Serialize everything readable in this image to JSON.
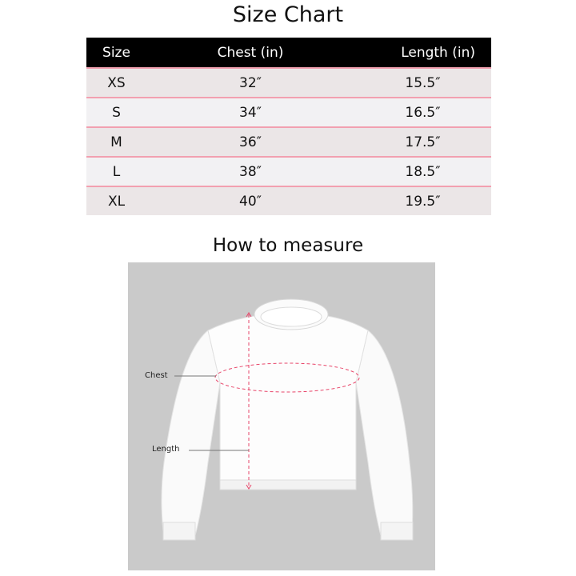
{
  "title": "Size Chart",
  "table": {
    "headers": [
      "Size",
      "Chest (in)",
      "Length (in)"
    ],
    "rows": [
      [
        "XS",
        "32″",
        "15.5″"
      ],
      [
        "S",
        "34″",
        "16.5″"
      ],
      [
        "M",
        "36″",
        "17.5″"
      ],
      [
        "L",
        "38″",
        "18.5″"
      ],
      [
        "XL",
        "40″",
        "19.5″"
      ]
    ]
  },
  "measure": {
    "title": "How to measure",
    "chest_label": "Chest",
    "length_label": "Length"
  },
  "colors": {
    "header_bg": "#000000",
    "row_divider": "#f2a0b0",
    "measure_line": "#e8466a",
    "panel_bg": "#cacaca"
  }
}
